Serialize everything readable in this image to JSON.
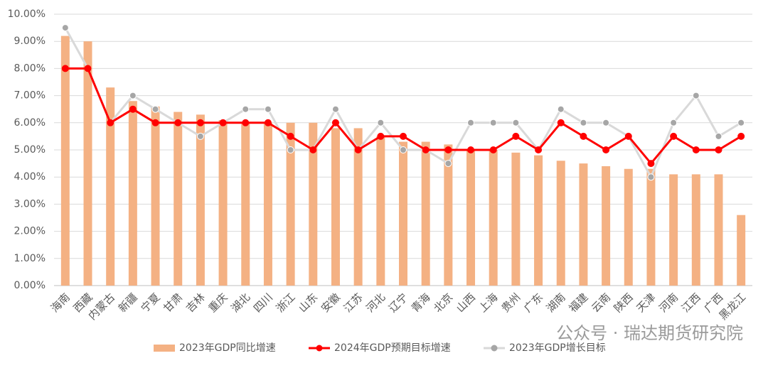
{
  "chart_data": {
    "type": "bar",
    "categories": [
      "海南",
      "西藏",
      "内蒙古",
      "新疆",
      "宁夏",
      "甘肃",
      "吉林",
      "重庆",
      "湖北",
      "四川",
      "浙江",
      "山东",
      "安徽",
      "江苏",
      "河北",
      "辽宁",
      "青海",
      "北京",
      "山西",
      "上海",
      "贵州",
      "广东",
      "湖南",
      "福建",
      "云南",
      "陕西",
      "天津",
      "河南",
      "江西",
      "广西",
      "黑龙江"
    ],
    "series": [
      {
        "name": "2023年GDP同比增速",
        "type": "bar",
        "color": "#f4b183",
        "values": [
          9.2,
          9.0,
          7.3,
          6.8,
          6.6,
          6.4,
          6.3,
          6.1,
          6.0,
          6.0,
          6.0,
          6.0,
          5.8,
          5.8,
          5.5,
          5.3,
          5.3,
          5.2,
          5.0,
          5.0,
          4.9,
          4.8,
          4.6,
          4.5,
          4.4,
          4.3,
          4.3,
          4.1,
          4.1,
          4.1,
          2.6
        ]
      },
      {
        "name": "2024年GDP预期目标增速",
        "type": "line",
        "color": "#ff0000",
        "marker_color": "#ff0000",
        "values": [
          8,
          8,
          6,
          6.5,
          6,
          6,
          6,
          6,
          6,
          6,
          5.5,
          5,
          6,
          5,
          5.5,
          5.5,
          5,
          5,
          5,
          5,
          5.5,
          5,
          6,
          5.5,
          5,
          5.5,
          4.5,
          5.5,
          5,
          5,
          5.5
        ]
      },
      {
        "name": "2023年GDP增长目标",
        "type": "line",
        "color": "#d9d9d9",
        "marker_color": "#a6a6a6",
        "values": [
          9.5,
          8,
          6,
          7,
          6.5,
          6,
          5.5,
          6,
          6.5,
          6.5,
          5,
          5,
          6.5,
          5,
          6,
          5,
          5,
          4.5,
          6,
          6,
          6,
          5,
          6.5,
          6,
          6,
          5.5,
          4,
          6,
          7,
          5.5,
          6
        ]
      }
    ],
    "ylim": [
      0,
      10
    ],
    "yticks": [
      {
        "value": 0,
        "label": "0.00%"
      },
      {
        "value": 1,
        "label": "1.00%"
      },
      {
        "value": 2,
        "label": "2.00%"
      },
      {
        "value": 3,
        "label": "3.00%"
      },
      {
        "value": 4,
        "label": "4.00%"
      },
      {
        "value": 5,
        "label": "5.00%"
      },
      {
        "value": 6,
        "label": "6.00%"
      },
      {
        "value": 7,
        "label": "7.00%"
      },
      {
        "value": 8,
        "label": "8.00%"
      },
      {
        "value": 9,
        "label": "9.00%"
      },
      {
        "value": 10,
        "label": "10.00%"
      }
    ],
    "grid": true,
    "legend": "bottom",
    "watermark": "公众号 · 瑞达期货研究院"
  }
}
